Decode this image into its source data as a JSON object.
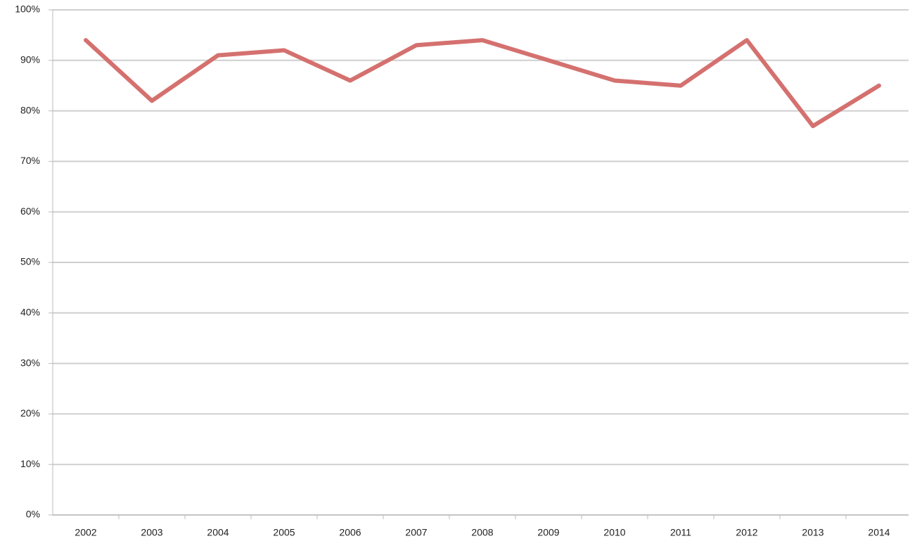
{
  "chart_data": {
    "type": "line",
    "categories": [
      "2002",
      "2003",
      "2004",
      "2005",
      "2006",
      "2007",
      "2008",
      "2009",
      "2010",
      "2011",
      "2012",
      "2013",
      "2014"
    ],
    "values": [
      94,
      82,
      91,
      92,
      86,
      93,
      94,
      90,
      86,
      85,
      94,
      77,
      85
    ],
    "color": "#d4716f",
    "ylim": [
      0,
      100
    ],
    "yticks": [
      {
        "value": 0,
        "label": "0%"
      },
      {
        "value": 10,
        "label": "10%"
      },
      {
        "value": 20,
        "label": "20%"
      },
      {
        "value": 30,
        "label": "30%"
      },
      {
        "value": 40,
        "label": "40%"
      },
      {
        "value": 50,
        "label": "50%"
      },
      {
        "value": 60,
        "label": "60%"
      },
      {
        "value": 70,
        "label": "70%"
      },
      {
        "value": 80,
        "label": "80%"
      },
      {
        "value": 90,
        "label": "90%"
      },
      {
        "value": 100,
        "label": "100%"
      }
    ],
    "grid": true
  }
}
